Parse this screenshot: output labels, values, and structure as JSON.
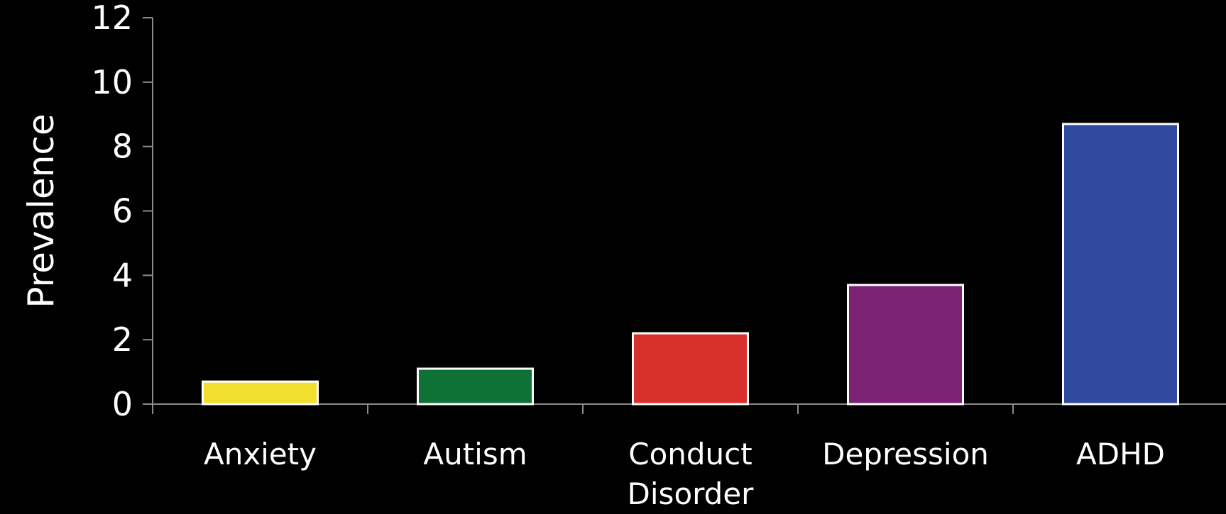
{
  "chart_data": {
    "type": "bar",
    "categories": [
      "Anxiety",
      "Autism",
      "Conduct Disorder",
      "Depression",
      "ADHD"
    ],
    "category_label_lines": [
      [
        "Anxiety"
      ],
      [
        "Autism"
      ],
      [
        "Conduct",
        "Disorder"
      ],
      [
        "Depression"
      ],
      [
        "ADHD"
      ]
    ],
    "values": [
      0.7,
      1.1,
      2.2,
      3.7,
      8.7
    ],
    "colors": [
      "#f2e02e",
      "#0e7236",
      "#d8302a",
      "#7b2475",
      "#2f4a9e"
    ],
    "bar_border_color": "#ffffff",
    "axis_color": "#8a8a8a",
    "background": "#000000",
    "title": "",
    "xlabel": "",
    "ylabel": "Prevalence",
    "ylim": [
      0,
      12
    ],
    "yticks": [
      0,
      2,
      4,
      6,
      8,
      10,
      12
    ],
    "ytick_labels": [
      "0",
      "2",
      "4",
      "6",
      "8",
      "10",
      "12"
    ],
    "grid": false,
    "legend": "none"
  }
}
